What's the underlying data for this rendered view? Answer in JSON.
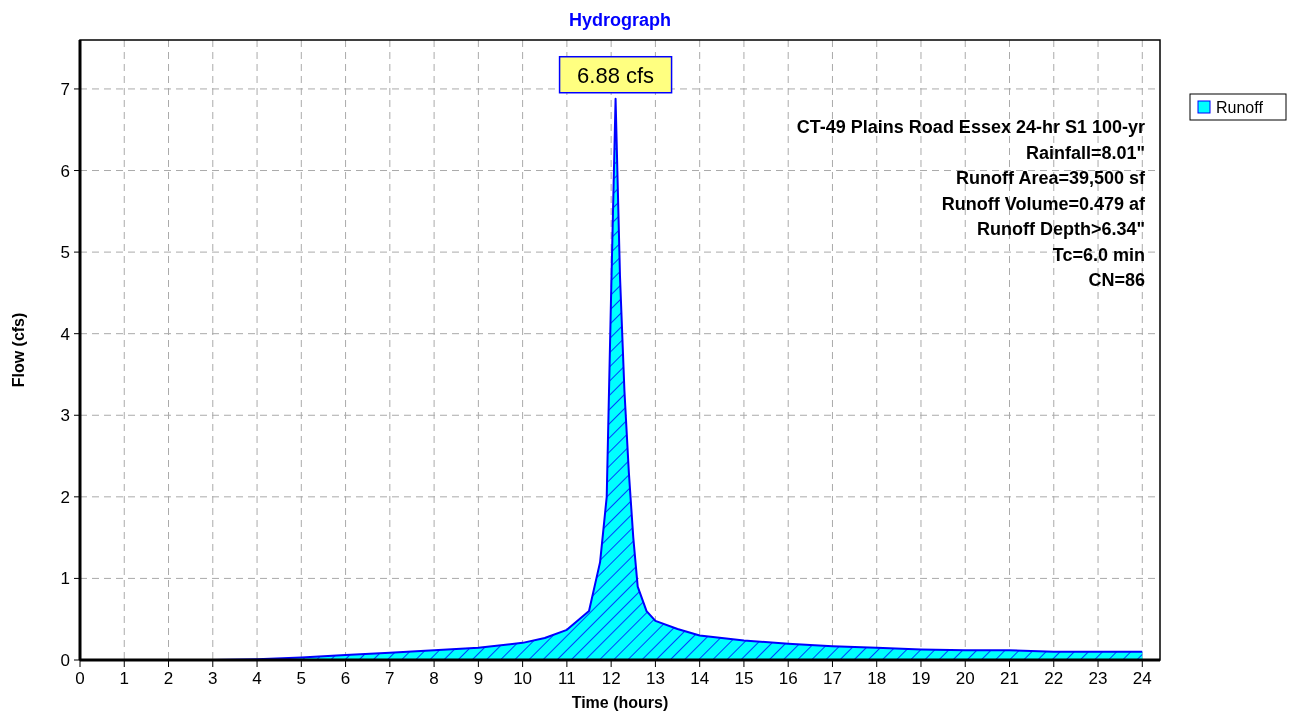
{
  "chart_data": {
    "type": "area",
    "title": "Hydrograph",
    "xlabel": "Time  (hours)",
    "ylabel": "Flow  (cfs)",
    "x": [
      0,
      1,
      2,
      3,
      4,
      5,
      6,
      7,
      8,
      9,
      10,
      10.5,
      11,
      11.5,
      11.75,
      11.9,
      12,
      12.1,
      12.2,
      12.3,
      12.4,
      12.5,
      12.6,
      12.8,
      13,
      13.5,
      14,
      15,
      16,
      17,
      18,
      19,
      20,
      21,
      22,
      23,
      24
    ],
    "series": [
      {
        "name": "Runoff",
        "color": "#00ffff",
        "values": [
          0,
          0,
          0,
          0,
          0.01,
          0.03,
          0.06,
          0.09,
          0.12,
          0.15,
          0.21,
          0.27,
          0.37,
          0.6,
          1.2,
          2,
          4.5,
          6.88,
          4.7,
          3.3,
          2.3,
          1.5,
          0.9,
          0.6,
          0.48,
          0.38,
          0.3,
          0.24,
          0.2,
          0.17,
          0.15,
          0.13,
          0.12,
          0.12,
          0.1,
          0.1,
          0.1
        ]
      }
    ],
    "xlim": [
      0,
      24.4
    ],
    "xticks": [
      0,
      1,
      2,
      3,
      4,
      5,
      6,
      7,
      8,
      9,
      10,
      11,
      12,
      13,
      14,
      15,
      16,
      17,
      18,
      19,
      20,
      21,
      22,
      23,
      24
    ],
    "ylim": [
      0,
      7.6
    ],
    "yticks": [
      0,
      1,
      2,
      3,
      4,
      5,
      6,
      7
    ],
    "grid": true,
    "legend": "top right",
    "annotations": [
      {
        "text": "6.88 cfs",
        "x": 12.1,
        "y": 6.88
      },
      "CT-49 Plains Road Essex 24-hr S1 100-yr",
      "Rainfall=8.01\"",
      "Runoff Area=39,500 sf",
      "Runoff Volume=0.479 af",
      "Runoff Depth>6.34\"",
      "Tc=6.0 min",
      "CN=86"
    ]
  }
}
